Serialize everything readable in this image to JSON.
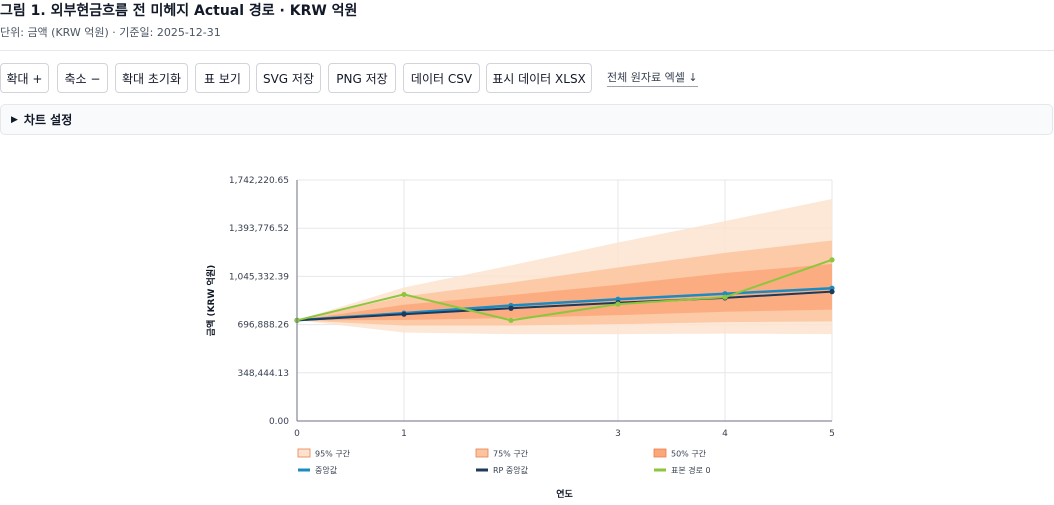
{
  "header": {
    "title": "그림 1. 외부현금흐름 전 미헤지 Actual 경로 · KRW 억원",
    "subtitle": "단위: 금액 (KRW 억원) · 기준일: 2025-12-31"
  },
  "toolbar": {
    "zoom_in": "확대 +",
    "zoom_out": "축소 −",
    "zoom_reset": "확대 초기화",
    "table_view": "표 보기",
    "svg_save": "SVG 저장",
    "png_save": "PNG 저장",
    "data_csv": "데이터 CSV",
    "display_xlsx": "표시 데이터 XLSX",
    "full_excel": "전체 원자료 엑셀 ↓"
  },
  "settings": {
    "label": "차트 설정"
  },
  "chart_data": {
    "type": "line",
    "xlabel": "연도",
    "ylabel": "금액 (KRW 억원)",
    "x_ticks": [
      0,
      1,
      3,
      4,
      5
    ],
    "xlim": [
      0,
      5
    ],
    "y_ticks": [
      "0.00",
      "348,444.13",
      "696,888.26",
      "1,045,332.39",
      "1,393,776.52",
      "1,742,220.65"
    ],
    "y_tick_values": [
      0,
      348444.13,
      696888.26,
      1045332.39,
      1393776.52,
      1742220.65
    ],
    "ylim": [
      0,
      1742220.65
    ],
    "grid": true,
    "legend_position": "bottom",
    "x": [
      0,
      1,
      2,
      3,
      4,
      5
    ],
    "bands": [
      {
        "name": "95% 구간",
        "color": "#fde3cf",
        "lower": [
          728000,
          640000,
          628000,
          628000,
          632000,
          628000
        ],
        "upper": [
          728000,
          965000,
          1125000,
          1290000,
          1445000,
          1605000
        ]
      },
      {
        "name": "75% 구간",
        "color": "#fcc49e",
        "lower": [
          728000,
          690000,
          690000,
          700000,
          715000,
          720000
        ],
        "upper": [
          728000,
          900000,
          1000000,
          1110000,
          1215000,
          1305000
        ]
      },
      {
        "name": "50% 구간",
        "color": "#fba77a",
        "lower": [
          728000,
          730000,
          745000,
          765000,
          790000,
          805000
        ],
        "upper": [
          728000,
          840000,
          910000,
          985000,
          1070000,
          1135000
        ]
      }
    ],
    "series": [
      {
        "name": "중앙값",
        "color": "#1b8bc1",
        "values": [
          728000,
          780000,
          835000,
          880000,
          920000,
          960000
        ]
      },
      {
        "name": "RP 중앙값",
        "color": "#1e3a5a",
        "values": [
          728000,
          772000,
          815000,
          855000,
          890000,
          935000
        ]
      },
      {
        "name": "표본 경로 0",
        "color": "#8cc63e",
        "values": [
          728000,
          915000,
          728000,
          845000,
          895000,
          1165000
        ]
      }
    ]
  }
}
